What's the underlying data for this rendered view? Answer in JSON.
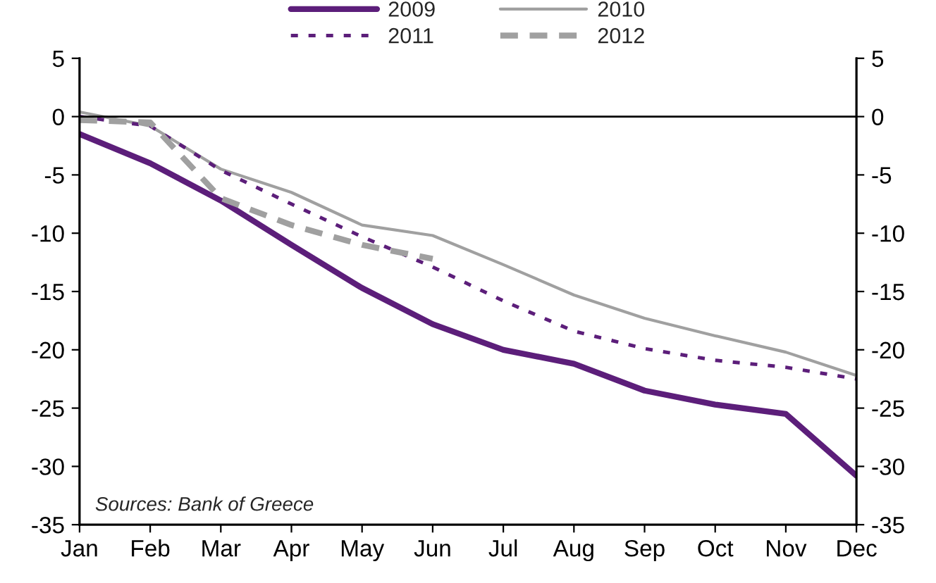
{
  "chart_data": {
    "type": "line",
    "categories": [
      "Jan",
      "Feb",
      "Mar",
      "Apr",
      "May",
      "Jun",
      "Jul",
      "Aug",
      "Sep",
      "Oct",
      "Nov",
      "Dec"
    ],
    "series": [
      {
        "name": "2009",
        "color": "#5c1e7a",
        "line_style": "solid",
        "values": [
          -1.5,
          -4,
          -7.2,
          -11,
          -14.7,
          -17.8,
          -20,
          -21.2,
          -23.5,
          -24.7,
          -25.5,
          -30.8
        ]
      },
      {
        "name": "2010",
        "color": "#a0a0a0",
        "line_style": "solid",
        "values": [
          0.4,
          -0.8,
          -4.5,
          -6.5,
          -9.3,
          -10.2,
          -12.7,
          -15.3,
          -17.3,
          -18.8,
          -20.2,
          -22.2
        ]
      },
      {
        "name": "2011",
        "color": "#5c1e7a",
        "line_style": "dotted",
        "values": [
          0,
          -0.8,
          -4.6,
          -7.5,
          -10.3,
          -12.9,
          -15.8,
          -18.4,
          -19.9,
          -20.9,
          -21.5,
          -22.5
        ]
      },
      {
        "name": "2012",
        "color": "#a0a0a0",
        "line_style": "dashed",
        "values": [
          -0.3,
          -0.5,
          -7,
          -9.3,
          -11,
          -12.2,
          null,
          null,
          null,
          null,
          null,
          null
        ]
      }
    ],
    "ylim": [
      -35,
      5
    ],
    "yticks": [
      -35,
      -30,
      -25,
      -20,
      -15,
      -10,
      -5,
      0,
      5
    ],
    "y2lim": [
      -35,
      5
    ],
    "y2ticks": [
      -35,
      -30,
      -25,
      -20,
      -15,
      -10,
      -5,
      0,
      5
    ],
    "ref_lines": [
      {
        "axis": "y",
        "value": 0,
        "color": "#000000"
      }
    ],
    "annotations": [
      "Sources: Bank of Greece"
    ],
    "legend": "top",
    "grid": false,
    "marker": "none"
  }
}
